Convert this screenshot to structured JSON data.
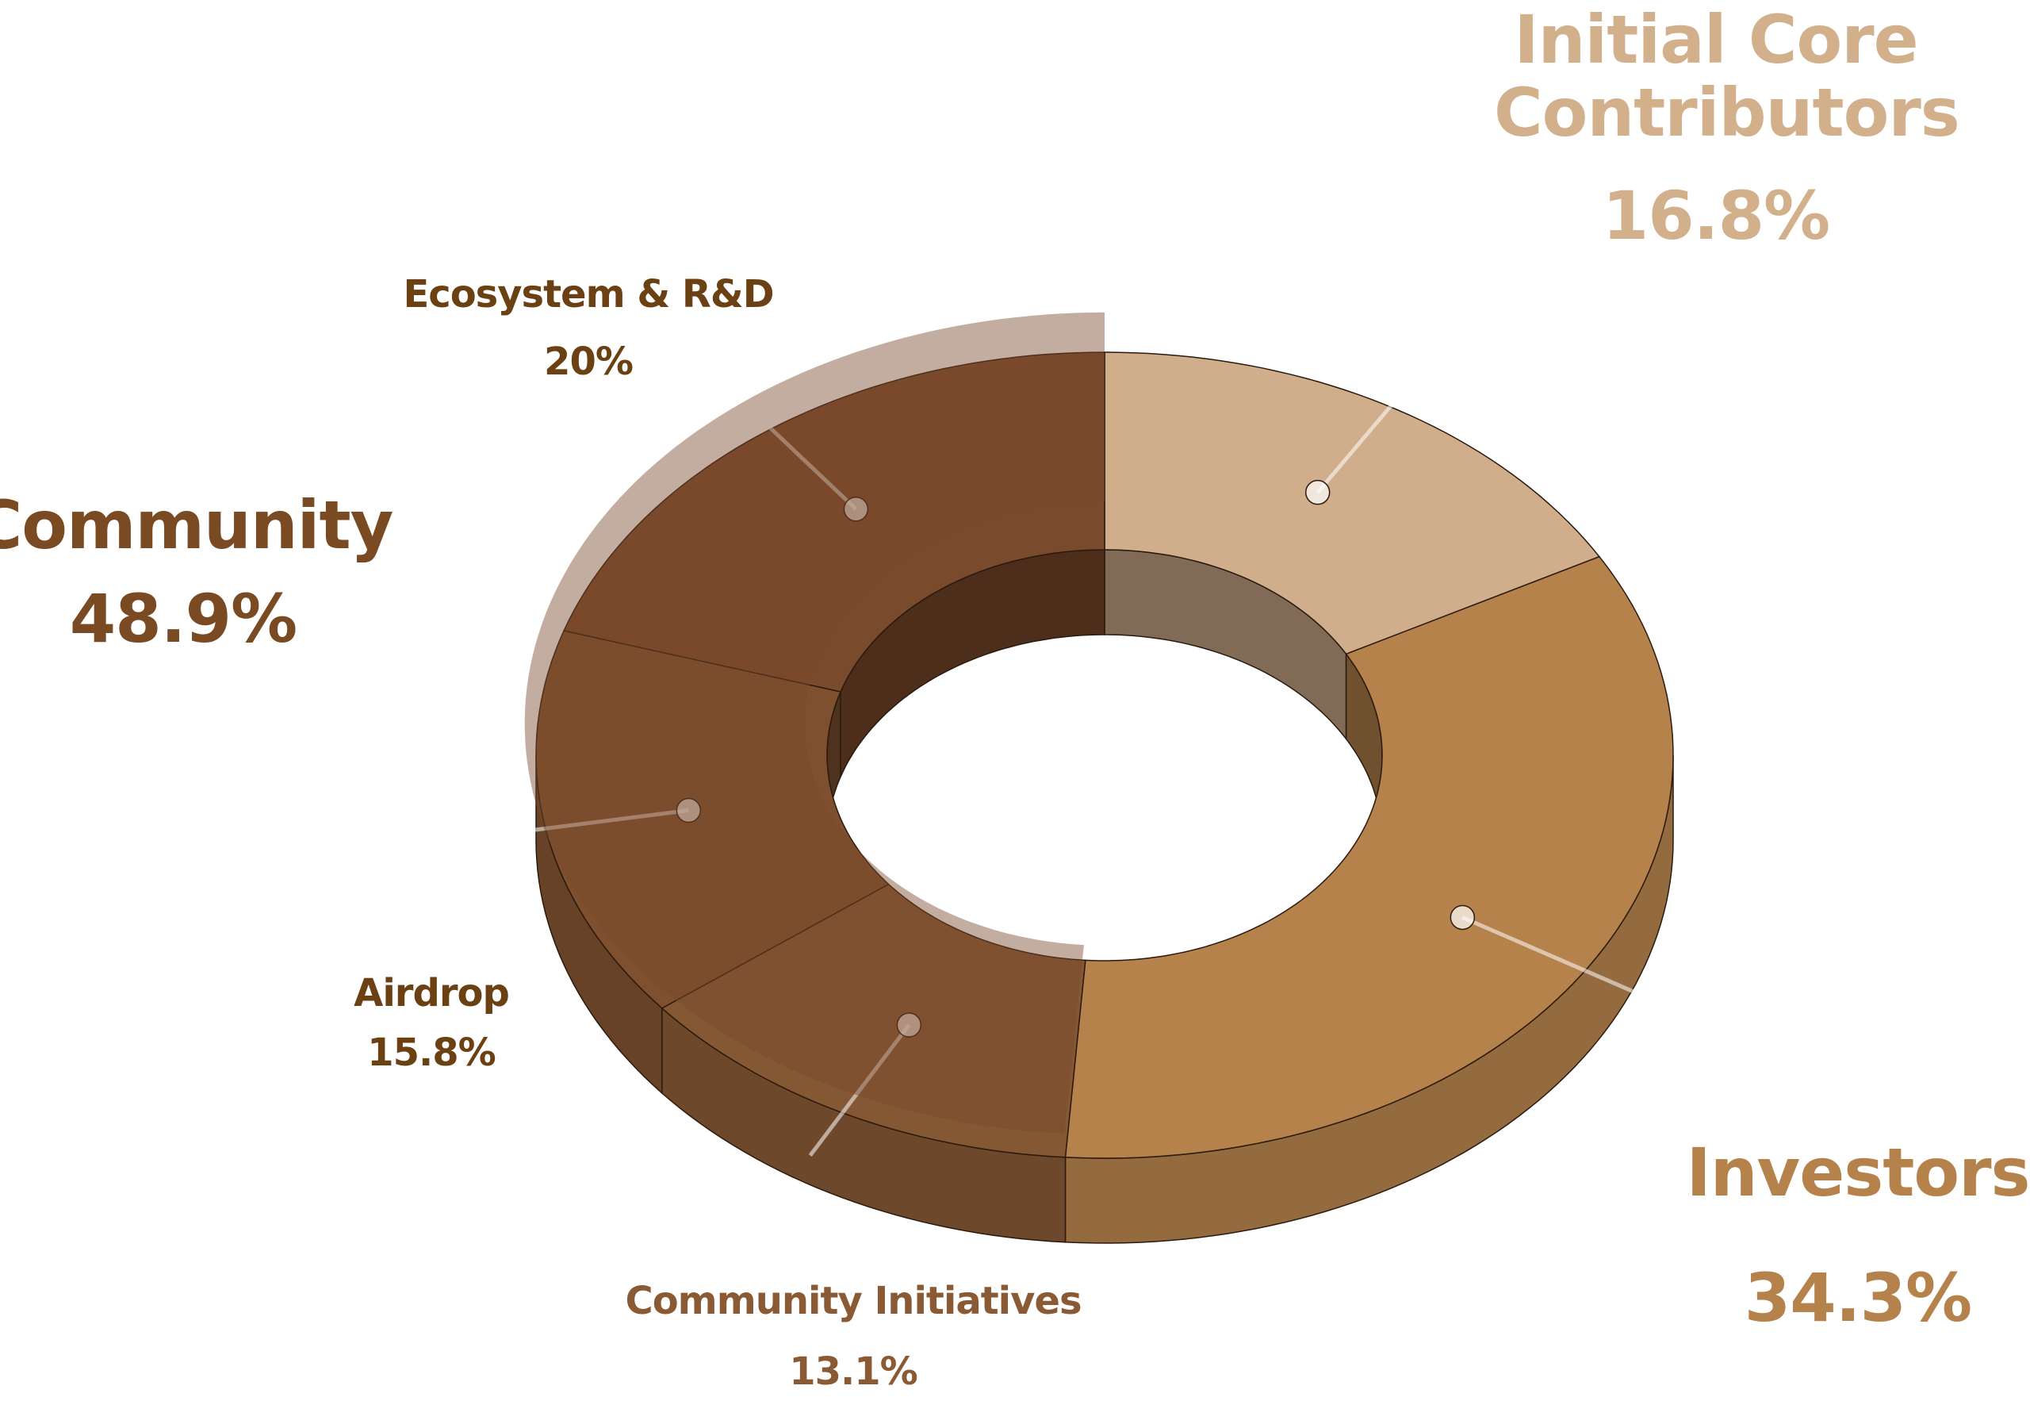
{
  "chart_data": {
    "type": "donut",
    "slices": [
      {
        "name": "Initial Core Contributors",
        "value": 16.8,
        "value_label": "16.8%",
        "color": "#d0ad8b"
      },
      {
        "name": "Investors",
        "value": 34.3,
        "value_label": "34.3%",
        "color": "#b5824c"
      },
      {
        "name": "Community",
        "value": 48.9,
        "value_label": "48.9%",
        "color": "#7a4a2c",
        "parts": [
          {
            "name": "Community Initiatives",
            "value": 13.1,
            "value_label": "13.1%",
            "color": "#855834"
          },
          {
            "name": "Airdrop",
            "value": 15.8,
            "value_label": "15.8%",
            "color": "#7e502f"
          },
          {
            "name": "Ecosystem & R&D",
            "value": 20,
            "value_label": "20%",
            "color": "#7a4a2c"
          }
        ]
      }
    ]
  }
}
